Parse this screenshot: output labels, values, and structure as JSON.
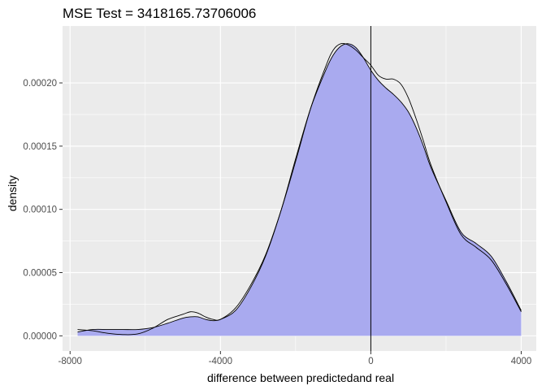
{
  "chart_data": {
    "type": "area",
    "title": "MSE Test =  3418165.73706006",
    "xlabel": "difference between predictedand real",
    "ylabel": "density",
    "xlim": [
      -8200,
      4400
    ],
    "ylim": [
      -1.2e-05,
      0.000245
    ],
    "x_ticks": [
      -8000,
      -4000,
      0,
      4000
    ],
    "x_tick_labels": [
      "-8000",
      "-4000",
      "0",
      "4000"
    ],
    "y_ticks": [
      0,
      5e-05,
      0.0001,
      0.00015,
      0.0002
    ],
    "y_tick_labels": [
      "0.00000",
      "0.00005",
      "0.00010",
      "0.00015",
      "0.00020"
    ],
    "grid": true,
    "vertical_line_x": 0,
    "fill_color": "#a9aaef",
    "panel_color": "#ebebeb",
    "series": [
      {
        "role": "filled",
        "x": [
          -7800,
          -7400,
          -7000,
          -6600,
          -6200,
          -5800,
          -5400,
          -5000,
          -4800,
          -4600,
          -4400,
          -4200,
          -4000,
          -3600,
          -3200,
          -2800,
          -2400,
          -2000,
          -1600,
          -1200,
          -1000,
          -800,
          -600,
          -400,
          -200,
          0,
          200,
          400,
          600,
          800,
          1000,
          1200,
          1400,
          1600,
          2000,
          2400,
          2800,
          3200,
          3600,
          4000
        ],
        "y": [
          3e-06,
          5e-06,
          5e-06,
          5e-06,
          5e-06,
          6.5e-06,
          1e-05,
          1.4e-05,
          1.5e-05,
          1.5e-05,
          1.3e-05,
          1.2e-05,
          1.3e-05,
          2e-05,
          3.8e-05,
          6.3e-05,
          9.8e-05,
          0.00014,
          0.00018,
          0.00021,
          0.000222,
          0.000229,
          0.000231,
          0.000228,
          0.00022,
          0.00021,
          0.000202,
          0.000196,
          0.000191,
          0.000185,
          0.000177,
          0.000165,
          0.00015,
          0.000133,
          0.000107,
          8.2e-05,
          7.3e-05,
          6.3e-05,
          4.3e-05,
          2e-05
        ]
      },
      {
        "role": "outline",
        "x": [
          -7800,
          -7400,
          -7000,
          -6600,
          -6200,
          -5800,
          -5400,
          -5000,
          -4800,
          -4600,
          -4400,
          -4200,
          -4000,
          -3600,
          -3200,
          -2800,
          -2400,
          -2000,
          -1600,
          -1200,
          -1000,
          -800,
          -600,
          -400,
          -200,
          0,
          200,
          400,
          600,
          800,
          1000,
          1200,
          1400,
          1600,
          2000,
          2400,
          2800,
          3200,
          3600,
          4000
        ],
        "y": [
          5e-06,
          4e-06,
          2e-06,
          1e-06,
          1.5e-06,
          6e-06,
          1.3e-05,
          1.7e-05,
          1.9e-05,
          1.8e-05,
          1.5e-05,
          1.3e-05,
          1.3e-05,
          2.2e-05,
          4e-05,
          6.4e-05,
          9.8e-05,
          0.000138,
          0.00018,
          0.000213,
          0.000226,
          0.000231,
          0.00023,
          0.000226,
          0.00022,
          0.000214,
          0.000206,
          0.000203,
          0.000203,
          0.000199,
          0.000188,
          0.000172,
          0.000154,
          0.000135,
          0.000106,
          8e-05,
          7e-05,
          6e-05,
          4.1e-05,
          1.9e-05
        ]
      }
    ]
  }
}
